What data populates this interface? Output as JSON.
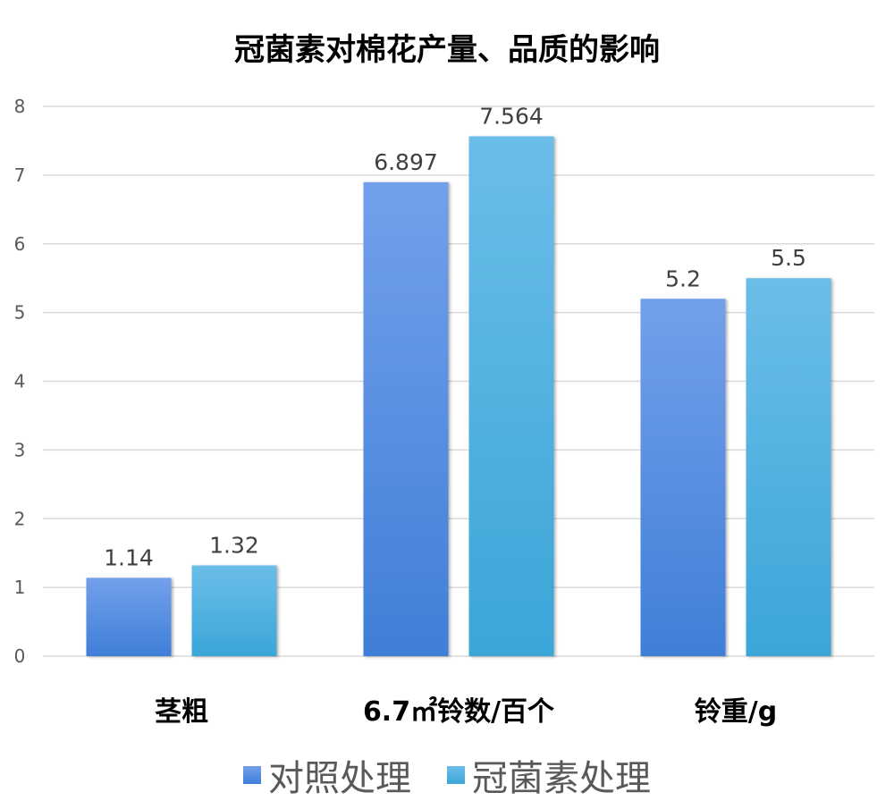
{
  "chart_data": {
    "type": "bar",
    "title": "冠菌素对棉花产量、品质的影响",
    "categories": [
      "茎粗",
      "6.7㎡铃数/百个",
      "铃重/g"
    ],
    "series": [
      {
        "name": "对照处理",
        "values": [
          1.14,
          6.897,
          5.2
        ],
        "labels": [
          "1.14",
          "6.897",
          "5.2"
        ],
        "color_top": "#73a0ea",
        "color_bottom": "#3f7fd8"
      },
      {
        "name": "冠菌素处理",
        "values": [
          1.32,
          7.564,
          5.5
        ],
        "labels": [
          "1.32",
          "7.564",
          "5.5"
        ],
        "color_top": "#6cbde9",
        "color_bottom": "#3aa6d8"
      }
    ],
    "ylim": [
      0,
      8
    ],
    "yticks": [
      "0",
      "1",
      "2",
      "3",
      "4",
      "5",
      "6",
      "7",
      "8"
    ],
    "grid": true,
    "legend": "bottom"
  }
}
